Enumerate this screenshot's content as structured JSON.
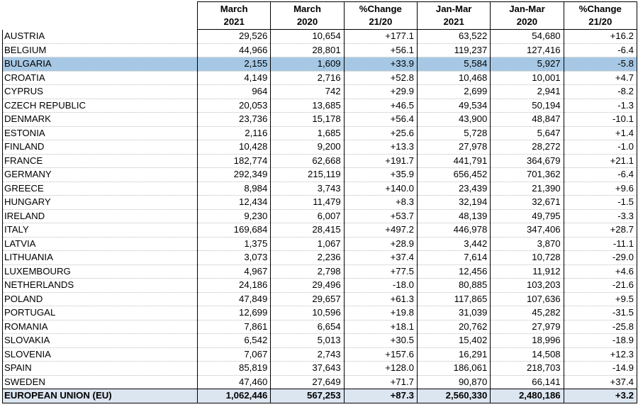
{
  "headers": [
    {
      "l1": "March",
      "l2": "2021"
    },
    {
      "l1": "March",
      "l2": "2020"
    },
    {
      "l1": "%Change",
      "l2": "21/20"
    },
    {
      "l1": "Jan-Mar",
      "l2": "2021"
    },
    {
      "l1": "Jan-Mar",
      "l2": "2020"
    },
    {
      "l1": "%Change",
      "l2": "21/20"
    }
  ],
  "rows": [
    [
      "AUSTRIA",
      "29,526",
      "10,654",
      "+177.1",
      "63,522",
      "54,680",
      "+16.2"
    ],
    [
      "BELGIUM",
      "44,966",
      "28,801",
      "+56.1",
      "119,237",
      "127,416",
      "-6.4"
    ],
    [
      "BULGARIA",
      "2,155",
      "1,609",
      "+33.9",
      "5,584",
      "5,927",
      "-5.8"
    ],
    [
      "CROATIA",
      "4,149",
      "2,716",
      "+52.8",
      "10,468",
      "10,001",
      "+4.7"
    ],
    [
      "CYPRUS",
      "964",
      "742",
      "+29.9",
      "2,699",
      "2,941",
      "-8.2"
    ],
    [
      "CZECH REPUBLIC",
      "20,053",
      "13,685",
      "+46.5",
      "49,534",
      "50,194",
      "-1.3"
    ],
    [
      "DENMARK",
      "23,736",
      "15,178",
      "+56.4",
      "43,900",
      "48,847",
      "-10.1"
    ],
    [
      "ESTONIA",
      "2,116",
      "1,685",
      "+25.6",
      "5,728",
      "5,647",
      "+1.4"
    ],
    [
      "FINLAND",
      "10,428",
      "9,200",
      "+13.3",
      "27,978",
      "28,272",
      "-1.0"
    ],
    [
      "FRANCE",
      "182,774",
      "62,668",
      "+191.7",
      "441,791",
      "364,679",
      "+21.1"
    ],
    [
      "GERMANY",
      "292,349",
      "215,119",
      "+35.9",
      "656,452",
      "701,362",
      "-6.4"
    ],
    [
      "GREECE",
      "8,984",
      "3,743",
      "+140.0",
      "23,439",
      "21,390",
      "+9.6"
    ],
    [
      "HUNGARY",
      "12,434",
      "11,479",
      "+8.3",
      "32,194",
      "32,671",
      "-1.5"
    ],
    [
      "IRELAND",
      "9,230",
      "6,007",
      "+53.7",
      "48,139",
      "49,795",
      "-3.3"
    ],
    [
      "ITALY",
      "169,684",
      "28,415",
      "+497.2",
      "446,978",
      "347,406",
      "+28.7"
    ],
    [
      "LATVIA",
      "1,375",
      "1,067",
      "+28.9",
      "3,442",
      "3,870",
      "-11.1"
    ],
    [
      "LITHUANIA",
      "3,073",
      "2,236",
      "+37.4",
      "7,614",
      "10,728",
      "-29.0"
    ],
    [
      "LUXEMBOURG",
      "4,967",
      "2,798",
      "+77.5",
      "12,456",
      "11,912",
      "+4.6"
    ],
    [
      "NETHERLANDS",
      "24,186",
      "29,496",
      "-18.0",
      "80,885",
      "103,203",
      "-21.6"
    ],
    [
      "POLAND",
      "47,849",
      "29,657",
      "+61.3",
      "117,865",
      "107,636",
      "+9.5"
    ],
    [
      "PORTUGAL",
      "12,699",
      "10,596",
      "+19.8",
      "31,039",
      "45,282",
      "-31.5"
    ],
    [
      "ROMANIA",
      "7,861",
      "6,654",
      "+18.1",
      "20,762",
      "27,979",
      "-25.8"
    ],
    [
      "SLOVAKIA",
      "6,542",
      "5,013",
      "+30.5",
      "15,402",
      "18,996",
      "-18.9"
    ],
    [
      "SLOVENIA",
      "7,067",
      "2,743",
      "+157.6",
      "16,291",
      "14,508",
      "+12.3"
    ],
    [
      "SPAIN",
      "85,819",
      "37,643",
      "+128.0",
      "186,061",
      "218,703",
      "-14.9"
    ],
    [
      "SWEDEN",
      "47,460",
      "27,649",
      "+71.7",
      "90,870",
      "66,141",
      "+37.4"
    ]
  ],
  "highlight_row": "BULGARIA",
  "highlight_color": "#a6c8e4",
  "total": [
    "EUROPEAN UNION (EU)",
    "1,062,446",
    "567,253",
    "+87.3",
    "2,560,330",
    "2,480,186",
    "+3.2"
  ],
  "total_color": "#dce6f1"
}
